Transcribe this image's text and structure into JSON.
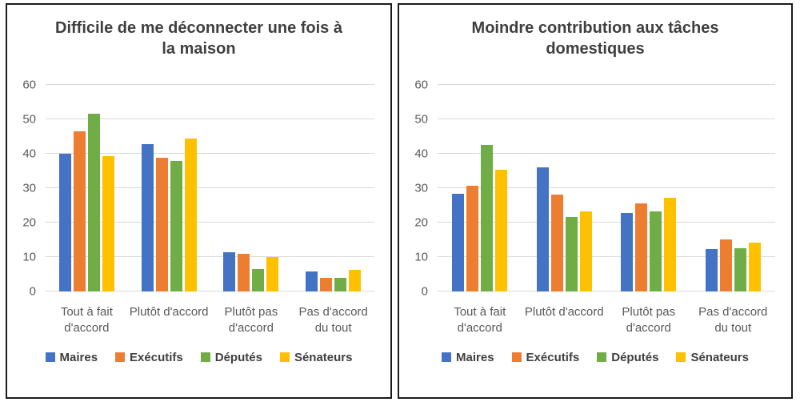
{
  "palette": {
    "maires_blue": "#4472C4",
    "executifs_orange": "#ED7D31",
    "deputes_green": "#70AD47",
    "senateurs_yellow": "#FFC000",
    "gridline_gray": "#D9D9D9",
    "axis_text_gray": "#595959",
    "title_gray": "#3F3F3F",
    "panel_border": "#1A1A1A"
  },
  "chart_data": [
    {
      "type": "bar",
      "title": "Difficile de me déconnecter une fois à la maison",
      "categories": [
        "Tout à fait d'accord",
        "Plutôt d'accord",
        "Plutôt pas d'accord",
        "Pas d'accord du tout"
      ],
      "series": [
        {
          "name": "Maires",
          "color": "#4472C4",
          "values": [
            40.1,
            42.8,
            11.3,
            5.9
          ]
        },
        {
          "name": "Exécutifs",
          "color": "#ED7D31",
          "values": [
            46.4,
            38.9,
            10.9,
            3.9
          ]
        },
        {
          "name": "Députés",
          "color": "#70AD47",
          "values": [
            51.7,
            37.9,
            6.4,
            3.9
          ]
        },
        {
          "name": "Sénateurs",
          "color": "#FFC000",
          "values": [
            39.4,
            44.4,
            10.0,
            6.3
          ]
        }
      ],
      "ylim": [
        0,
        60
      ],
      "yticks": [
        0,
        10,
        20,
        30,
        40,
        50,
        60
      ],
      "grid": true,
      "legend_position": "bottom"
    },
    {
      "type": "bar",
      "title": "Moindre contribution aux tâches domestiques",
      "categories": [
        "Tout à fait d'accord",
        "Plutôt d'accord",
        "Plutôt pas d'accord",
        "Pas d'accord du tout"
      ],
      "series": [
        {
          "name": "Maires",
          "color": "#4472C4",
          "values": [
            28.4,
            36.1,
            22.8,
            12.4
          ]
        },
        {
          "name": "Exécutifs",
          "color": "#ED7D31",
          "values": [
            30.6,
            28.2,
            25.7,
            15.2
          ]
        },
        {
          "name": "Députés",
          "color": "#70AD47",
          "values": [
            42.5,
            21.7,
            23.2,
            12.5
          ]
        },
        {
          "name": "Sénateurs",
          "color": "#FFC000",
          "values": [
            35.3,
            23.3,
            27.3,
            14.1
          ]
        }
      ],
      "ylim": [
        0,
        60
      ],
      "yticks": [
        0,
        10,
        20,
        30,
        40,
        50,
        60
      ],
      "grid": true,
      "legend_position": "bottom"
    }
  ]
}
